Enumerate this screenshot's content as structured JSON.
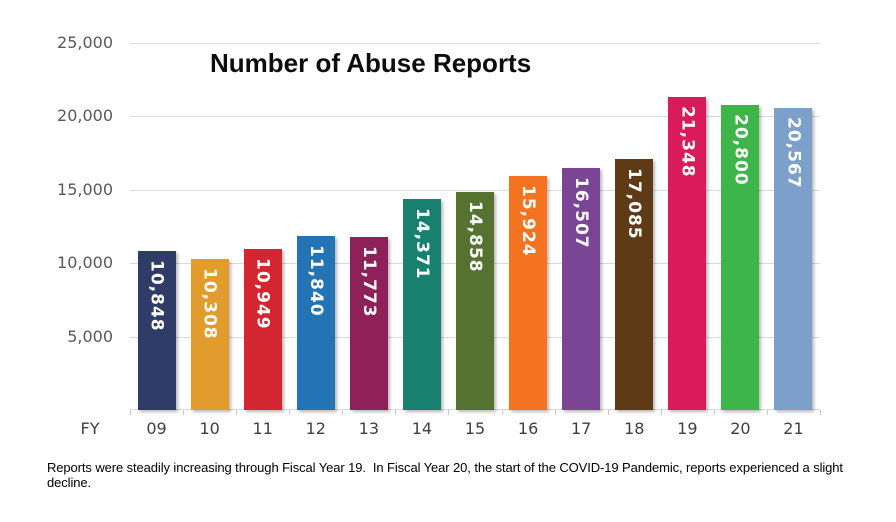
{
  "caption": "Reports were steadily increasing through Fiscal Year 19.  In Fiscal Year 20, the start of the COVID-19 Pandemic, reports experienced a slight decline.",
  "chart_data": {
    "type": "bar",
    "title": "Number of Abuse Reports",
    "xlabel": "FY",
    "ylabel": "",
    "categories": [
      "09",
      "10",
      "11",
      "12",
      "13",
      "14",
      "15",
      "16",
      "17",
      "18",
      "19",
      "20",
      "21"
    ],
    "values": [
      10848,
      10308,
      10949,
      11840,
      11773,
      14371,
      14858,
      15924,
      16507,
      17085,
      21348,
      20800,
      20567
    ],
    "value_labels": [
      "10,848",
      "10,308",
      "10,949",
      "11,840",
      "11,773",
      "14,371",
      "14,858",
      "15,924",
      "16,507",
      "17,085",
      "21,348",
      "20,800",
      "20,567"
    ],
    "bar_colors": [
      "#2f3c68",
      "#e19c2d",
      "#d22630",
      "#2374b5",
      "#8e2158",
      "#17806e",
      "#567230",
      "#f37321",
      "#7a4594",
      "#5e3a17",
      "#d91b5c",
      "#3eb549",
      "#7ca0ca"
    ],
    "y_ticks": [
      {
        "value": 25000,
        "label": "25,000"
      },
      {
        "value": 20000,
        "label": "20,000"
      },
      {
        "value": 15000,
        "label": "15,000"
      },
      {
        "value": 10000,
        "label": "10,000"
      },
      {
        "value": 5000,
        "label": "5,000"
      }
    ],
    "ylim": [
      0,
      25000
    ],
    "grid": true,
    "legend": "none",
    "bar_label_color": "#ffffff",
    "gridline_color": "#d9d9d9",
    "axis_text_color": "#595959"
  }
}
